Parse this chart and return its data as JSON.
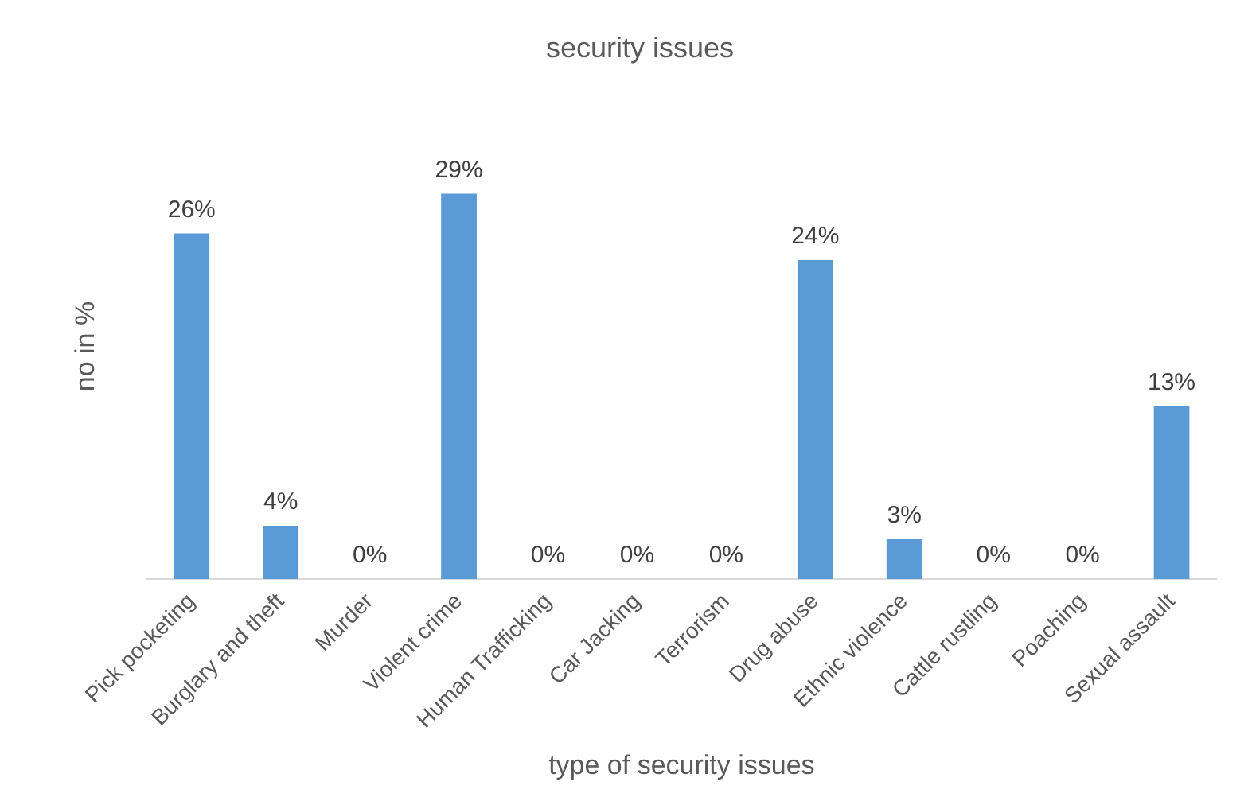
{
  "chart_data": {
    "type": "bar",
    "title": "security issues",
    "xlabel": "type of security issues",
    "ylabel": "no in %",
    "categories": [
      "Pick pocketing",
      "Burglary and theft",
      "Murder",
      "Violent crime",
      "Human Trafficking",
      "Car Jacking",
      "Terrorism",
      "Drug abuse",
      "Ethnic violence",
      "Cattle rustling",
      "Poaching",
      "Sexual assault"
    ],
    "values": [
      26,
      4,
      0,
      29,
      0,
      0,
      0,
      24,
      3,
      0,
      0,
      13
    ],
    "value_labels": [
      "26%",
      "4%",
      "0%",
      "29%",
      "0%",
      "0%",
      "0%",
      "24%",
      "3%",
      "0%",
      "0%",
      "13%"
    ],
    "color": "#5b9bd5",
    "grid": false,
    "legend": false,
    "tick_labels": "x"
  }
}
